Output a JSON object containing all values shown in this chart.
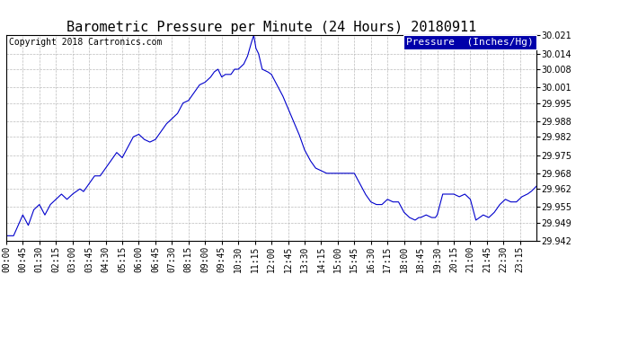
{
  "title": "Barometric Pressure per Minute (24 Hours) 20180911",
  "copyright": "Copyright 2018 Cartronics.com",
  "legend_label": "Pressure  (Inches/Hg)",
  "line_color": "#0000CC",
  "bg_color": "#ffffff",
  "plot_bg_color": "#ffffff",
  "grid_color": "#aaaaaa",
  "ylim": [
    29.942,
    30.021
  ],
  "yticks": [
    29.942,
    29.949,
    29.955,
    29.962,
    29.968,
    29.975,
    29.982,
    29.988,
    29.995,
    30.001,
    30.008,
    30.014,
    30.021
  ],
  "xtick_labels": [
    "00:00",
    "00:45",
    "01:30",
    "02:15",
    "03:00",
    "03:45",
    "04:30",
    "05:15",
    "06:00",
    "06:45",
    "07:30",
    "08:15",
    "09:00",
    "09:45",
    "10:30",
    "11:15",
    "12:00",
    "12:45",
    "13:30",
    "14:15",
    "15:00",
    "15:45",
    "16:30",
    "17:15",
    "18:00",
    "18:45",
    "19:30",
    "20:15",
    "21:00",
    "21:45",
    "22:30",
    "23:15"
  ],
  "title_fontsize": 11,
  "tick_fontsize": 7,
  "copyright_fontsize": 7,
  "legend_fontsize": 8,
  "waypoints": [
    [
      0,
      29.944
    ],
    [
      20,
      29.944
    ],
    [
      45,
      29.952
    ],
    [
      60,
      29.948
    ],
    [
      75,
      29.954
    ],
    [
      90,
      29.956
    ],
    [
      105,
      29.952
    ],
    [
      120,
      29.956
    ],
    [
      135,
      29.958
    ],
    [
      150,
      29.96
    ],
    [
      165,
      29.958
    ],
    [
      180,
      29.96
    ],
    [
      200,
      29.962
    ],
    [
      210,
      29.961
    ],
    [
      225,
      29.964
    ],
    [
      240,
      29.967
    ],
    [
      255,
      29.967
    ],
    [
      270,
      29.97
    ],
    [
      285,
      29.973
    ],
    [
      300,
      29.976
    ],
    [
      315,
      29.974
    ],
    [
      330,
      29.978
    ],
    [
      345,
      29.982
    ],
    [
      360,
      29.983
    ],
    [
      375,
      29.981
    ],
    [
      390,
      29.98
    ],
    [
      405,
      29.981
    ],
    [
      420,
      29.984
    ],
    [
      435,
      29.987
    ],
    [
      450,
      29.989
    ],
    [
      465,
      29.991
    ],
    [
      480,
      29.995
    ],
    [
      495,
      29.996
    ],
    [
      510,
      29.999
    ],
    [
      525,
      30.002
    ],
    [
      540,
      30.003
    ],
    [
      555,
      30.005
    ],
    [
      565,
      30.007
    ],
    [
      575,
      30.008
    ],
    [
      585,
      30.005
    ],
    [
      595,
      30.006
    ],
    [
      610,
      30.006
    ],
    [
      620,
      30.008
    ],
    [
      630,
      30.008
    ],
    [
      645,
      30.01
    ],
    [
      655,
      30.013
    ],
    [
      665,
      30.018
    ],
    [
      672,
      30.021
    ],
    [
      678,
      30.016
    ],
    [
      685,
      30.014
    ],
    [
      695,
      30.008
    ],
    [
      710,
      30.007
    ],
    [
      720,
      30.006
    ],
    [
      735,
      30.002
    ],
    [
      750,
      29.998
    ],
    [
      765,
      29.993
    ],
    [
      780,
      29.988
    ],
    [
      795,
      29.983
    ],
    [
      810,
      29.977
    ],
    [
      825,
      29.973
    ],
    [
      840,
      29.97
    ],
    [
      855,
      29.969
    ],
    [
      870,
      29.968
    ],
    [
      885,
      29.968
    ],
    [
      900,
      29.968
    ],
    [
      915,
      29.968
    ],
    [
      930,
      29.968
    ],
    [
      945,
      29.968
    ],
    [
      960,
      29.964
    ],
    [
      975,
      29.96
    ],
    [
      990,
      29.957
    ],
    [
      1005,
      29.956
    ],
    [
      1020,
      29.956
    ],
    [
      1035,
      29.958
    ],
    [
      1050,
      29.957
    ],
    [
      1065,
      29.957
    ],
    [
      1080,
      29.953
    ],
    [
      1095,
      29.951
    ],
    [
      1110,
      29.95
    ],
    [
      1120,
      29.951
    ],
    [
      1125,
      29.951
    ],
    [
      1140,
      29.952
    ],
    [
      1155,
      29.951
    ],
    [
      1165,
      29.951
    ],
    [
      1170,
      29.952
    ],
    [
      1185,
      29.96
    ],
    [
      1200,
      29.96
    ],
    [
      1215,
      29.96
    ],
    [
      1230,
      29.959
    ],
    [
      1245,
      29.96
    ],
    [
      1260,
      29.958
    ],
    [
      1275,
      29.95
    ],
    [
      1285,
      29.951
    ],
    [
      1295,
      29.952
    ],
    [
      1310,
      29.951
    ],
    [
      1325,
      29.953
    ],
    [
      1340,
      29.956
    ],
    [
      1355,
      29.958
    ],
    [
      1370,
      29.957
    ],
    [
      1385,
      29.957
    ],
    [
      1400,
      29.959
    ],
    [
      1415,
      29.96
    ],
    [
      1425,
      29.961
    ],
    [
      1439,
      29.963
    ]
  ]
}
